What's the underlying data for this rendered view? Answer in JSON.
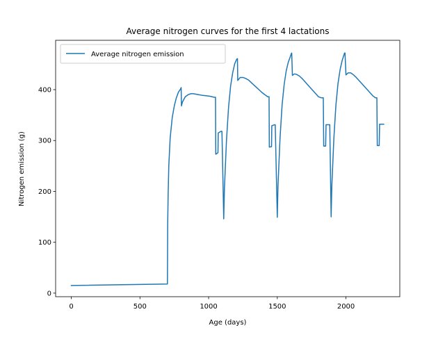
{
  "chart_data": {
    "type": "line",
    "title": "Average nitrogen curves for the first 4 lactations",
    "xlabel": "Age (days)",
    "ylabel": "Nitrogen emission (g)",
    "xlim": [
      -114,
      2392
    ],
    "ylim": [
      -7,
      497
    ],
    "xticks": [
      0,
      500,
      1000,
      1500,
      2000
    ],
    "yticks": [
      0,
      100,
      200,
      300,
      400
    ],
    "grid": false,
    "legend_position": "top-left",
    "series": [
      {
        "name": "Average nitrogen emission",
        "color": "#1f77b4",
        "x": [
          0,
          700,
          702,
          705,
          710,
          720,
          735,
          750,
          765,
          780,
          795,
          800,
          802,
          810,
          830,
          850,
          870,
          890,
          910,
          930,
          950,
          980,
          1010,
          1040,
          1050,
          1052,
          1068,
          1070,
          1090,
          1097,
          1110,
          1115,
          1130,
          1145,
          1160,
          1175,
          1190,
          1205,
          1210,
          1212,
          1230,
          1250,
          1270,
          1290,
          1310,
          1330,
          1350,
          1370,
          1390,
          1410,
          1430,
          1440,
          1442,
          1458,
          1460,
          1480,
          1485,
          1500,
          1505,
          1520,
          1535,
          1550,
          1565,
          1580,
          1595,
          1602,
          1605,
          1610,
          1625,
          1640,
          1660,
          1680,
          1700,
          1720,
          1740,
          1760,
          1780,
          1800,
          1820,
          1835,
          1838,
          1852,
          1855,
          1875,
          1882,
          1892,
          1897,
          1912,
          1927,
          1942,
          1957,
          1972,
          1985,
          1990,
          1993,
          2000,
          2015,
          2035,
          2055,
          2075,
          2095,
          2115,
          2135,
          2155,
          2175,
          2195,
          2215,
          2225,
          2228,
          2242,
          2245,
          2262,
          2275
        ],
        "values": [
          15,
          18,
          135,
          190,
          250,
          305,
          345,
          368,
          384,
          395,
          401,
          404,
          368,
          376,
          386,
          390,
          392,
          392,
          391,
          390,
          389,
          388,
          387,
          385,
          385,
          273,
          276,
          315,
          318,
          318,
          146,
          205,
          300,
          365,
          407,
          433,
          451,
          460,
          461,
          418,
          424,
          424,
          422,
          419,
          414,
          409,
          404,
          399,
          394,
          390,
          386,
          386,
          287,
          288,
          329,
          331,
          331,
          149,
          210,
          305,
          370,
          410,
          437,
          454,
          465,
          471,
          472,
          428,
          431,
          430,
          427,
          422,
          416,
          410,
          404,
          398,
          392,
          386,
          384,
          384,
          289,
          289,
          331,
          331,
          331,
          150,
          210,
          305,
          370,
          412,
          439,
          457,
          468,
          472,
          472,
          429,
          433,
          433,
          429,
          424,
          418,
          412,
          406,
          400,
          394,
          388,
          384,
          384,
          290,
          290,
          332,
          332,
          332
        ]
      }
    ]
  }
}
